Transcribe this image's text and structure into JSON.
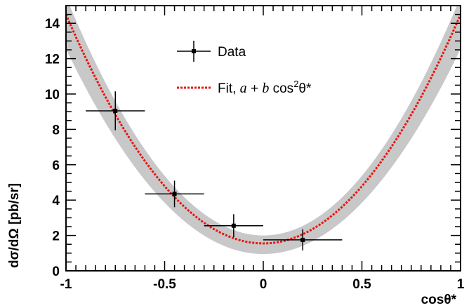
{
  "chart_data": {
    "type": "scatter",
    "xlabel": "cosθ*",
    "ylabel": "dσ/dΩ [pb/sr]",
    "xlim": [
      -1,
      1
    ],
    "ylim": [
      0,
      15
    ],
    "x_ticks": [
      "-1",
      "-0.5",
      "0",
      "0.5",
      "1"
    ],
    "y_ticks": [
      "0",
      "2",
      "4",
      "6",
      "8",
      "10",
      "12",
      "14"
    ],
    "grid": false,
    "legend_position": "top-center",
    "legend": {
      "data_label": "Data",
      "fit_prefix": "Fit, ",
      "fit_a": "a",
      "fit_plus": " + ",
      "fit_b": "b",
      "fit_cos": " cos",
      "fit_sup": "2",
      "fit_theta": "θ*"
    },
    "data": {
      "name": "Data",
      "points": [
        {
          "x": -0.75,
          "y": 9.05,
          "xerr": 0.15,
          "yerr_up": 1.1,
          "yerr_down": 1.1
        },
        {
          "x": -0.45,
          "y": 4.35,
          "xerr": 0.15,
          "yerr_up": 0.75,
          "yerr_down": 0.75
        },
        {
          "x": -0.15,
          "y": 2.55,
          "xerr": 0.15,
          "yerr_up": 0.65,
          "yerr_down": 0.65
        },
        {
          "x": 0.2,
          "y": 1.75,
          "xerr": 0.2,
          "yerr_up": 0.6,
          "yerr_down": 0.6
        }
      ]
    },
    "fit": {
      "name": "Fit, a + b cos2θ*",
      "a": 1.55,
      "b": 12.95,
      "band_low": {
        "a": 0.95,
        "b": 11.6
      },
      "band_high": {
        "a": 2.0,
        "b": 13.5
      }
    },
    "colors": {
      "data": "#000000",
      "fit": "#e8140f",
      "band": "#c8c8c8"
    }
  }
}
